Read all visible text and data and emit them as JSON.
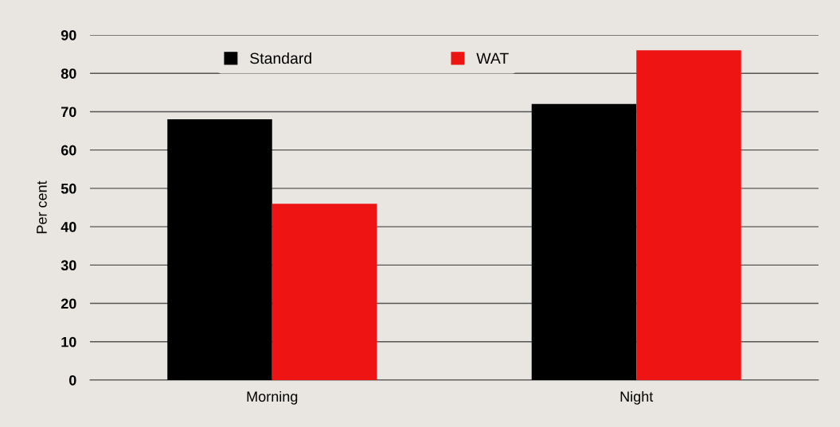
{
  "chart_data": {
    "type": "bar",
    "ylabel": "Per cent",
    "categories": [
      "Morning",
      "Night"
    ],
    "series": [
      {
        "name": "Standard",
        "color": "#000000",
        "values": [
          68,
          72
        ]
      },
      {
        "name": "WAT",
        "color": "#ee1414",
        "values": [
          46,
          86
        ]
      }
    ],
    "ylim": [
      0,
      90
    ],
    "yticks": [
      0,
      10,
      20,
      30,
      40,
      50,
      60,
      70,
      80,
      90
    ],
    "grid": "y",
    "legend": "top"
  }
}
